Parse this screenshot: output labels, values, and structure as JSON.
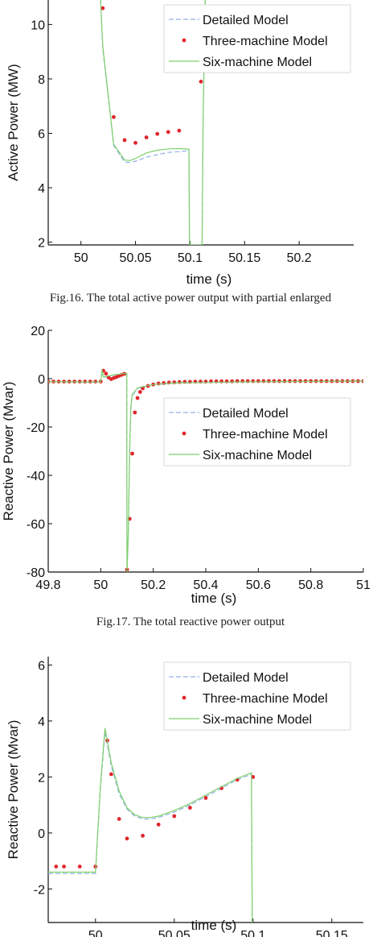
{
  "colors": {
    "detailed": "#8fb4e3",
    "three": "#e0262c",
    "six": "#7fd06a",
    "axis": "#111111"
  },
  "figures": [
    {
      "caption": "Fig.16. The total active power output with partial enlarged",
      "legend": [
        "Detailed Model",
        "Three-machine Model",
        "Six-machine Model"
      ]
    },
    {
      "caption": "Fig.17. The total reactive power output",
      "legend": [
        "Detailed Model",
        "Three-machine Model",
        "Six-machine Model"
      ]
    },
    {
      "caption": "",
      "legend": [
        "Detailed Model",
        "Three-machine Model",
        "Six-machine Model"
      ]
    }
  ],
  "chart_data": [
    {
      "type": "line",
      "xlabel": "time (s)",
      "ylabel": "Active Power (MW)",
      "xlim": [
        49.97,
        50.25
      ],
      "ylim": [
        1.9,
        10.9
      ],
      "xticks": [
        50,
        50.05,
        50.1,
        50.15,
        50.2
      ],
      "xtick_labels": [
        "50",
        "50.05",
        "50.1",
        "50.15",
        "50.2"
      ],
      "yticks": [
        2,
        4,
        6,
        8,
        10
      ],
      "ytick_labels": [
        "2",
        "4",
        "6",
        "8",
        "10"
      ],
      "legend_position": "top-right",
      "series": [
        {
          "name": "Detailed Model",
          "style": "dashed",
          "x": [
            50.018,
            50.02,
            50.03,
            50.04,
            50.045,
            50.05,
            50.06,
            50.07,
            50.08,
            50.09,
            50.099,
            50.0995,
            50.111,
            50.112,
            50.114
          ],
          "y": [
            10.9,
            9.1,
            5.55,
            4.95,
            4.93,
            4.98,
            5.12,
            5.22,
            5.3,
            5.33,
            5.36,
            1.9,
            1.9,
            6.5,
            10.9
          ]
        },
        {
          "name": "Three-machine Model",
          "style": "dots",
          "x": [
            50.02,
            50.03,
            50.04,
            50.05,
            50.06,
            50.07,
            50.08,
            50.09,
            50.11
          ],
          "y": [
            10.6,
            6.6,
            5.75,
            5.65,
            5.85,
            5.98,
            6.05,
            6.1,
            7.9
          ]
        },
        {
          "name": "Six-machine Model",
          "style": "solid",
          "x": [
            50.018,
            50.02,
            50.03,
            50.04,
            50.045,
            50.05,
            50.06,
            50.07,
            50.08,
            50.09,
            50.099,
            50.0995,
            50.111,
            50.112,
            50.114
          ],
          "y": [
            10.9,
            9.2,
            5.6,
            5.02,
            5.0,
            5.08,
            5.28,
            5.38,
            5.43,
            5.44,
            5.42,
            1.9,
            1.9,
            6.6,
            10.9
          ]
        }
      ]
    },
    {
      "type": "line",
      "xlabel": "time (s)",
      "ylabel": "Reactive Power (Mvar)",
      "xlim": [
        49.8,
        51
      ],
      "ylim": [
        -80,
        20
      ],
      "xticks": [
        49.8,
        50,
        50.2,
        50.4,
        50.6,
        50.8,
        51
      ],
      "xtick_labels": [
        "49.8",
        "50",
        "50.2",
        "50.4",
        "50.6",
        "50.8",
        "51"
      ],
      "yticks": [
        -80,
        -60,
        -40,
        -20,
        0,
        20
      ],
      "ytick_labels": [
        "-80",
        "-60",
        "-40",
        "-20",
        "0",
        "20"
      ],
      "legend_position": "top-right",
      "series": [
        {
          "name": "Detailed Model",
          "style": "dashed",
          "x": [
            49.8,
            50.0,
            50.005,
            50.01,
            50.05,
            50.099,
            50.1,
            50.105,
            50.11,
            50.115,
            50.12,
            50.14,
            50.2,
            50.3,
            50.5,
            50.7,
            51.0
          ],
          "y": [
            -1.3,
            -1.4,
            3.6,
            0.6,
            1.5,
            2.1,
            -80,
            -65,
            -30,
            -12,
            -7,
            -4,
            -2.5,
            -1.8,
            -1.4,
            -1.2,
            -1.0
          ]
        },
        {
          "name": "Three-machine Model",
          "style": "dots",
          "x": [
            49.8,
            49.82,
            49.84,
            49.86,
            49.88,
            49.9,
            49.92,
            49.94,
            49.96,
            49.98,
            50.0,
            50.01,
            50.02,
            50.03,
            50.04,
            50.05,
            50.06,
            50.07,
            50.08,
            50.09,
            50.1,
            50.11,
            50.12,
            50.13,
            50.14,
            50.15,
            50.16,
            50.18,
            50.2,
            50.22,
            50.24,
            50.26,
            50.28,
            50.3,
            50.32,
            50.34,
            50.36,
            50.38,
            50.4,
            50.42,
            50.44,
            50.46,
            50.48,
            50.5,
            50.52,
            50.54,
            50.56,
            50.58,
            50.6,
            50.62,
            50.64,
            50.66,
            50.68,
            50.7,
            50.72,
            50.74,
            50.76,
            50.78,
            50.8,
            50.82,
            50.84,
            50.86,
            50.88,
            50.9,
            50.92,
            50.94,
            50.96,
            50.98,
            51.0
          ],
          "y": [
            -1.2,
            -1.2,
            -1.2,
            -1.2,
            -1.2,
            -1.2,
            -1.2,
            -1.2,
            -1.2,
            -1.2,
            -1.2,
            3.3,
            2.1,
            0.5,
            -0.2,
            0.3,
            0.7,
            1.2,
            1.6,
            2.0,
            -79,
            -58,
            -31,
            -14,
            -8,
            -5.5,
            -4,
            -3,
            -2.4,
            -2,
            -1.8,
            -1.6,
            -1.5,
            -1.4,
            -1.3,
            -1.3,
            -1.2,
            -1.2,
            -1.2,
            -1.1,
            -1.1,
            -1.1,
            -1.1,
            -1.1,
            -1.0,
            -1.0,
            -1.0,
            -1.0,
            -1.0,
            -1.0,
            -1.0,
            -1.0,
            -1.0,
            -1.0,
            -1.0,
            -1.0,
            -1.0,
            -1.0,
            -1.0,
            -1.0,
            -1.0,
            -1.0,
            -1.0,
            -1.0,
            -1.0,
            -1.0,
            -1.0,
            -1.0,
            -1.0
          ]
        },
        {
          "name": "Six-machine Model",
          "style": "solid",
          "x": [
            49.8,
            50.0,
            50.005,
            50.01,
            50.05,
            50.099,
            50.1,
            50.105,
            50.11,
            50.115,
            50.12,
            50.14,
            50.2,
            50.3,
            50.5,
            50.7,
            51.0
          ],
          "y": [
            -1.3,
            -1.4,
            3.7,
            0.7,
            1.6,
            2.2,
            -80,
            -64,
            -29,
            -11,
            -6.5,
            -3.8,
            -2.4,
            -1.7,
            -1.4,
            -1.2,
            -1.0
          ]
        }
      ]
    },
    {
      "type": "line",
      "xlabel": "time (s)",
      "ylabel": "Reactive Power (Mvar)",
      "xlim": [
        49.97,
        50.17
      ],
      "ylim": [
        -3.2,
        6.3
      ],
      "xticks": [
        50,
        50.05,
        50.1,
        50.15
      ],
      "xtick_labels": [
        "50",
        "50.05",
        "50.1",
        "50.15"
      ],
      "yticks": [
        -2,
        0,
        2,
        4,
        6
      ],
      "ytick_labels": [
        "-2",
        "0",
        "2",
        "4",
        "6"
      ],
      "legend_position": "top-right",
      "series": [
        {
          "name": "Detailed Model",
          "style": "dashed",
          "x": [
            49.97,
            50.0,
            50.003,
            50.006,
            50.01,
            50.015,
            50.02,
            50.025,
            50.03,
            50.035,
            50.04,
            50.05,
            50.06,
            50.07,
            50.08,
            50.09,
            50.099,
            50.0995
          ],
          "y": [
            -1.45,
            -1.45,
            1.5,
            3.6,
            2.4,
            1.4,
            0.85,
            0.6,
            0.5,
            0.5,
            0.55,
            0.75,
            1.0,
            1.3,
            1.6,
            1.9,
            2.1,
            -3.2
          ]
        },
        {
          "name": "Three-machine Model",
          "style": "dots",
          "x": [
            49.975,
            49.98,
            49.99,
            50.0,
            50.0075,
            50.01,
            50.015,
            50.02,
            50.03,
            50.04,
            50.05,
            50.06,
            50.07,
            50.08,
            50.09,
            50.1
          ],
          "y": [
            -1.2,
            -1.2,
            -1.2,
            -1.2,
            3.3,
            2.1,
            0.5,
            -0.2,
            -0.1,
            0.3,
            0.6,
            0.9,
            1.25,
            1.6,
            1.9,
            2.0
          ]
        },
        {
          "name": "Six-machine Model",
          "style": "solid",
          "x": [
            49.97,
            50.0,
            50.003,
            50.006,
            50.01,
            50.015,
            50.02,
            50.025,
            50.03,
            50.035,
            50.04,
            50.05,
            50.06,
            50.07,
            50.08,
            50.09,
            50.099,
            50.0995
          ],
          "y": [
            -1.4,
            -1.4,
            1.6,
            3.75,
            2.5,
            1.5,
            0.9,
            0.65,
            0.55,
            0.55,
            0.6,
            0.8,
            1.05,
            1.35,
            1.65,
            1.95,
            2.15,
            -3.2
          ]
        }
      ]
    }
  ]
}
